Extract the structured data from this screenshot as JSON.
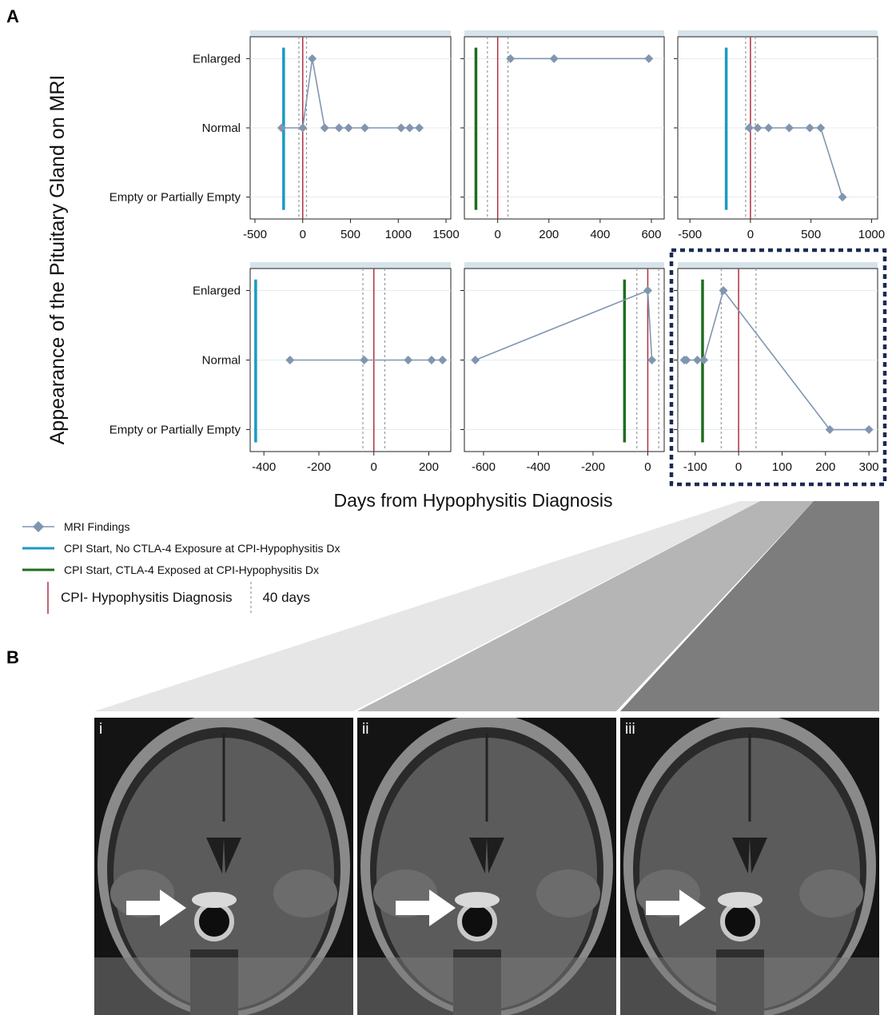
{
  "panel_a_letter": "A",
  "panel_b_letter": "B",
  "y_title": "Appearance of the Pituitary Gland on MRI",
  "x_title": "Days from Hypophysitis Diagnosis",
  "y_categories": [
    "Empty or Partially Empty",
    "Normal",
    "Enlarged"
  ],
  "colors": {
    "mri_series": "#8096b0",
    "cpi_no_ctla4": "#1a9ac4",
    "cpi_ctla4": "#1e6e1e",
    "diagnosis": "#b03040",
    "dashed_40": "#999999",
    "header_bar": "#d6e3ea",
    "highlight_box": "#1b2a55"
  },
  "legend": {
    "mri_findings": "MRI Findings",
    "cpi_no_ctla4": "CPI Start, No CTLA-4 Exposure at CPI-Hypophysitis Dx",
    "cpi_ctla4": "CPI Start, CTLA-4 Exposed at CPI-Hypophysitis Dx",
    "diagnosis": "CPI- Hypophysitis Diagnosis",
    "forty_days": "40 days"
  },
  "chart_data": [
    {
      "type": "line",
      "xlim": [
        -550,
        1550
      ],
      "xticks": [
        -500,
        0,
        500,
        1000,
        1500
      ],
      "cpi_start": {
        "x": -200,
        "ctla4_exposed": false
      },
      "diagnosis_x": 0,
      "dashed_x": [
        -40,
        40
      ],
      "series": [
        {
          "x": [
            -220,
            0,
            100,
            230,
            380,
            480,
            650,
            1030,
            1120,
            1220
          ],
          "y": [
            "Normal",
            "Normal",
            "Enlarged",
            "Normal",
            "Normal",
            "Normal",
            "Normal",
            "Normal",
            "Normal",
            "Normal"
          ]
        }
      ]
    },
    {
      "type": "line",
      "xlim": [
        -130,
        650
      ],
      "xticks": [
        0,
        200,
        400,
        600
      ],
      "cpi_start": {
        "x": -85,
        "ctla4_exposed": true
      },
      "diagnosis_x": 0,
      "dashed_x": [
        -40,
        40
      ],
      "series": [
        {
          "x": [
            50,
            220,
            590
          ],
          "y": [
            "Enlarged",
            "Enlarged",
            "Enlarged"
          ]
        }
      ]
    },
    {
      "type": "line",
      "xlim": [
        -600,
        1050
      ],
      "xticks": [
        -500,
        0,
        500,
        1000
      ],
      "cpi_start": {
        "x": -200,
        "ctla4_exposed": false
      },
      "diagnosis_x": 0,
      "dashed_x": [
        -40,
        40
      ],
      "series": [
        {
          "x": [
            -10,
            60,
            150,
            320,
            490,
            580,
            760
          ],
          "y": [
            "Normal",
            "Normal",
            "Normal",
            "Normal",
            "Normal",
            "Normal",
            "Empty or Partially Empty"
          ]
        }
      ]
    },
    {
      "type": "line",
      "xlim": [
        -450,
        280
      ],
      "xticks": [
        -400,
        -200,
        0,
        200
      ],
      "cpi_start": {
        "x": -430,
        "ctla4_exposed": false
      },
      "diagnosis_x": 0,
      "dashed_x": [
        -40,
        40
      ],
      "series": [
        {
          "x": [
            -305,
            -35,
            125,
            210,
            250
          ],
          "y": [
            "Normal",
            "Normal",
            "Normal",
            "Normal",
            "Normal"
          ]
        }
      ]
    },
    {
      "type": "line",
      "xlim": [
        -670,
        60
      ],
      "xticks": [
        -600,
        -400,
        -200,
        0
      ],
      "cpi_start": {
        "x": -85,
        "ctla4_exposed": true
      },
      "diagnosis_x": 0,
      "dashed_x": [
        -40,
        40
      ],
      "series": [
        {
          "x": [
            -630,
            0,
            15
          ],
          "y": [
            "Normal",
            "Enlarged",
            "Normal"
          ]
        }
      ]
    },
    {
      "type": "line",
      "xlim": [
        -140,
        320
      ],
      "xticks": [
        -100,
        0,
        100,
        200,
        300
      ],
      "cpi_start": {
        "x": -83,
        "ctla4_exposed": true
      },
      "diagnosis_x": 0,
      "dashed_x": [
        -40,
        40
      ],
      "highlighted": true,
      "series": [
        {
          "x": [
            -125,
            -120,
            -95,
            -80,
            -35,
            210,
            300
          ],
          "y": [
            "Normal",
            "Normal",
            "Normal",
            "Normal",
            "Enlarged",
            "Empty or Partially Empty",
            "Empty or Partially Empty"
          ]
        }
      ]
    }
  ],
  "mri_panels": [
    {
      "label": "i",
      "arrow_icon": "arrow-right-icon"
    },
    {
      "label": "ii",
      "arrow_icon": "arrow-right-icon"
    },
    {
      "label": "iii",
      "arrow_icon": "arrow-right-icon"
    }
  ]
}
